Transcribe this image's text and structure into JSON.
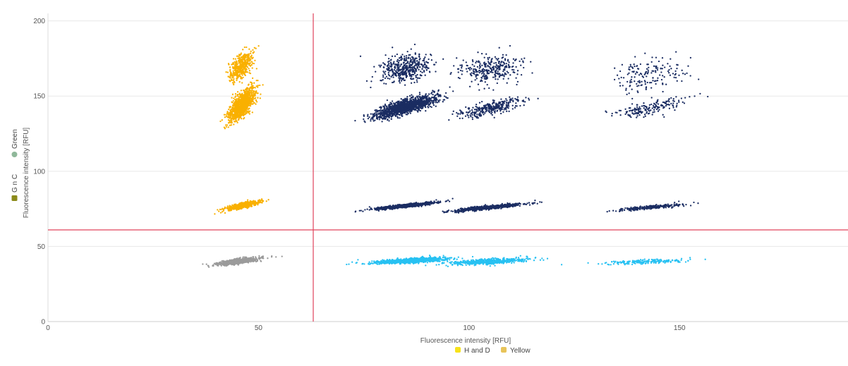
{
  "chart_data": {
    "type": "scatter",
    "xlabel": "Fluorescence intensity [RFU]",
    "ylabel": "Fluorescence intensity [RFU]",
    "xlim": [
      0,
      190
    ],
    "ylim": [
      0,
      205
    ],
    "x_ticks": [
      "0",
      "50",
      "100",
      "150"
    ],
    "y_ticks": [
      "0",
      "50",
      "100",
      "150",
      "200"
    ],
    "grid": "horizontal",
    "threshold_x": 63,
    "threshold_y": 61,
    "threshold_color": "#e0435c",
    "x_legend": [
      {
        "label": "H and D",
        "color": "#f7e21b"
      },
      {
        "label": "Yellow",
        "color": "#e8c45a"
      }
    ],
    "y_legend": [
      {
        "label": "Green",
        "color": "#8fb89a"
      },
      {
        "label": "G n C",
        "color": "#8b8a1a"
      }
    ],
    "series": [
      {
        "color": "#f9b000",
        "clusters": [
          {
            "cx": 46,
            "cy": 170,
            "sx": 1.3,
            "sy": 5.0,
            "rho": 0.55,
            "n": 450
          },
          {
            "cx": 46,
            "cy": 144,
            "sx": 1.6,
            "sy": 5.5,
            "rho": 0.7,
            "n": 1100
          },
          {
            "cx": 46,
            "cy": 77,
            "sx": 2.0,
            "sy": 1.5,
            "rho": 0.8,
            "n": 600
          }
        ]
      },
      {
        "color": "#1b2d62",
        "clusters": [
          {
            "cx": 85,
            "cy": 168,
            "sx": 3.0,
            "sy": 5.0,
            "rho": 0.2,
            "n": 450
          },
          {
            "cx": 105,
            "cy": 168,
            "sx": 3.6,
            "sy": 5.0,
            "rho": 0.2,
            "n": 300
          },
          {
            "cx": 143,
            "cy": 165,
            "sx": 3.6,
            "sy": 6.0,
            "rho": 0.15,
            "n": 160
          },
          {
            "cx": 85,
            "cy": 143,
            "sx": 3.5,
            "sy": 3.5,
            "rho": 0.8,
            "n": 1500
          },
          {
            "cx": 105,
            "cy": 142,
            "sx": 4.0,
            "sy": 3.0,
            "rho": 0.7,
            "n": 300
          },
          {
            "cx": 143,
            "cy": 142,
            "sx": 4.0,
            "sy": 3.0,
            "rho": 0.7,
            "n": 180
          },
          {
            "cx": 85,
            "cy": 77,
            "sx": 3.8,
            "sy": 1.3,
            "rho": 0.9,
            "n": 700
          },
          {
            "cx": 105,
            "cy": 76,
            "sx": 4.3,
            "sy": 1.3,
            "rho": 0.9,
            "n": 650
          },
          {
            "cx": 143,
            "cy": 76,
            "sx": 4.0,
            "sy": 1.1,
            "rho": 0.85,
            "n": 250
          }
        ]
      },
      {
        "color": "#27c1f2",
        "clusters": [
          {
            "cx": 86,
            "cy": 40.5,
            "sx": 4.5,
            "sy": 1.0,
            "rho": 0.7,
            "n": 900
          },
          {
            "cx": 105,
            "cy": 40,
            "sx": 4.5,
            "sy": 1.0,
            "rho": 0.6,
            "n": 550
          },
          {
            "cx": 143,
            "cy": 40,
            "sx": 5.0,
            "sy": 0.8,
            "rho": 0.5,
            "n": 180
          }
        ]
      },
      {
        "color": "#9b9b9b",
        "clusters": [
          {
            "cx": 45,
            "cy": 40,
            "sx": 2.5,
            "sy": 1.2,
            "rho": 0.75,
            "n": 600
          }
        ]
      }
    ]
  }
}
